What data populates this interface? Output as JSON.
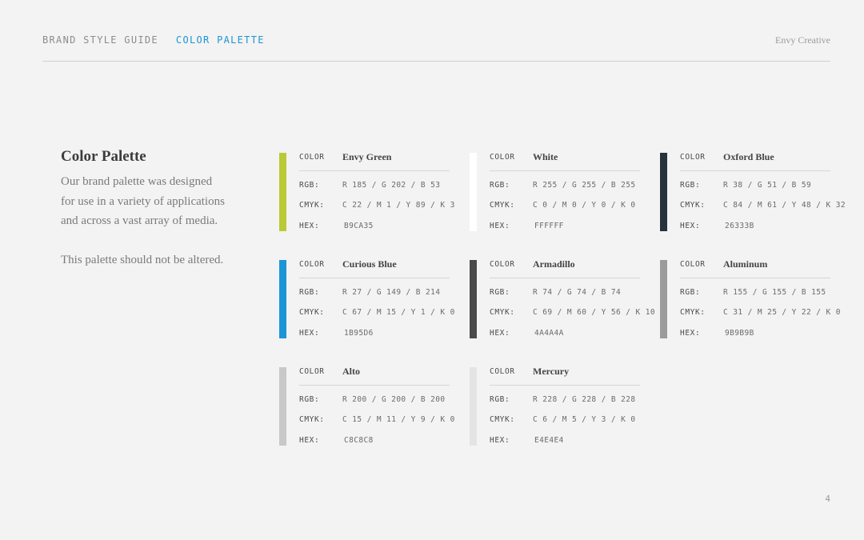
{
  "header": {
    "guide_label": "BRAND STYLE GUIDE",
    "section_label": "COLOR PALETTE",
    "brand": "Envy Creative"
  },
  "intro": {
    "title": "Color Palette",
    "paragraph1": "Our brand palette was designed for use in a variety of applications and across a vast array of media.",
    "paragraph2": "This palette should not be altered."
  },
  "labels": {
    "color": "COLOR",
    "rgb": "RGB:",
    "cmyk": "CMYK:",
    "hex": "HEX:"
  },
  "swatches": [
    {
      "name": "Envy Green",
      "rgb": "R 185 / G 202 / B 53",
      "cmyk": "C 22 / M 1 / Y 89 / K 3",
      "hex": "B9CA35",
      "color": "#b9ca35"
    },
    {
      "name": "White",
      "rgb": "R 255 / G 255 / B 255",
      "cmyk": "C 0 / M 0 / Y 0 / K 0",
      "hex": "FFFFFF",
      "color": "#ffffff"
    },
    {
      "name": "Oxford Blue",
      "rgb": "R 38 / G 51 / B 59",
      "cmyk": "C 84 / M 61 / Y 48 / K 32",
      "hex": "26333B",
      "color": "#26333b"
    },
    {
      "name": "Curious Blue",
      "rgb": "R 27 / G 149 / B 214",
      "cmyk": "C 67 / M 15 / Y 1 / K 0",
      "hex": "1B95D6",
      "color": "#1b95d6"
    },
    {
      "name": "Armadillo",
      "rgb": "R 74 / G 74 / B 74",
      "cmyk": "C 69 / M 60 / Y 56 / K 10",
      "hex": "4A4A4A",
      "color": "#4a4a4a"
    },
    {
      "name": "Aluminum",
      "rgb": "R 155 / G 155 / B 155",
      "cmyk": "C 31 / M 25 / Y 22 / K 0",
      "hex": "9B9B9B",
      "color": "#9b9b9b"
    },
    {
      "name": "Alto",
      "rgb": "R 200 / G 200 / B 200",
      "cmyk": "C 15 / M 11 / Y 9 / K 0",
      "hex": "C8C8C8",
      "color": "#c8c8c8"
    },
    {
      "name": "Mercury",
      "rgb": "R 228 / G 228 / B 228",
      "cmyk": "C 6 / M 5 / Y 3 / K 0",
      "hex": "E4E4E4",
      "color": "#e4e4e4"
    }
  ],
  "page_number": "4",
  "accent_color": "#1b95d6"
}
